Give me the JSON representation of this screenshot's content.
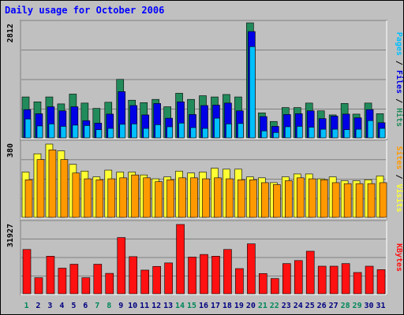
{
  "title": "Daily usage for October 2006",
  "colors": {
    "hits": "#228B5B",
    "files": "#0000e6",
    "pages": "#00bfff",
    "visits": "#ffff33",
    "sites": "#ff9900",
    "kbytes": "#ff1111",
    "weekend_day": "#00875a",
    "weekday": "#000080"
  },
  "chart_data": [
    {
      "type": "bar",
      "panel": "hits-files-pages",
      "y_max_label": "2812",
      "ylim": [
        0,
        2812
      ],
      "side_label": [
        "Pages",
        "Files",
        "Hits"
      ],
      "categories": [
        "1",
        "2",
        "3",
        "4",
        "5",
        "6",
        "7",
        "8",
        "9",
        "10",
        "11",
        "12",
        "13",
        "14",
        "15",
        "16",
        "17",
        "18",
        "19",
        "20",
        "21",
        "22",
        "23",
        "24",
        "25",
        "26",
        "27",
        "28",
        "29",
        "30",
        "31"
      ],
      "series": [
        {
          "name": "Hits",
          "values": [
            1000,
            880,
            1000,
            830,
            1070,
            850,
            720,
            870,
            1430,
            920,
            860,
            940,
            760,
            1090,
            940,
            1030,
            1000,
            1060,
            1000,
            2812,
            610,
            400,
            740,
            740,
            850,
            660,
            560,
            840,
            580,
            850,
            590
          ]
        },
        {
          "name": "Files",
          "values": [
            690,
            590,
            760,
            660,
            760,
            420,
            360,
            580,
            1130,
            790,
            560,
            840,
            480,
            880,
            570,
            790,
            800,
            850,
            660,
            2600,
            520,
            280,
            570,
            590,
            660,
            470,
            530,
            580,
            490,
            690,
            370
          ]
        },
        {
          "name": "Pages",
          "values": [
            460,
            290,
            340,
            280,
            310,
            300,
            200,
            230,
            330,
            340,
            230,
            320,
            270,
            360,
            250,
            230,
            480,
            340,
            350,
            2230,
            170,
            130,
            270,
            280,
            260,
            210,
            210,
            200,
            210,
            420,
            230
          ]
        }
      ]
    },
    {
      "type": "bar",
      "panel": "visits-sites",
      "y_max_label": "380",
      "ylim": [
        0,
        380
      ],
      "side_label": [
        "Sites",
        "Visits"
      ],
      "categories": [
        "1",
        "2",
        "3",
        "4",
        "5",
        "6",
        "7",
        "8",
        "9",
        "10",
        "11",
        "12",
        "13",
        "14",
        "15",
        "16",
        "17",
        "18",
        "19",
        "20",
        "21",
        "22",
        "23",
        "24",
        "25",
        "26",
        "27",
        "28",
        "29",
        "30",
        "31"
      ],
      "series": [
        {
          "name": "Visits",
          "values": [
            235,
            330,
            380,
            345,
            275,
            240,
            210,
            245,
            235,
            235,
            220,
            200,
            210,
            240,
            230,
            235,
            255,
            250,
            250,
            210,
            205,
            180,
            210,
            225,
            225,
            200,
            210,
            190,
            190,
            195,
            215
          ]
        },
        {
          "name": "Sites",
          "values": [
            195,
            300,
            350,
            300,
            230,
            200,
            195,
            200,
            205,
            220,
            205,
            185,
            195,
            205,
            205,
            200,
            205,
            200,
            195,
            195,
            180,
            170,
            190,
            205,
            200,
            195,
            180,
            175,
            175,
            175,
            180
          ]
        }
      ]
    },
    {
      "type": "bar",
      "panel": "kbytes",
      "y_max_label": "31927",
      "ylim": [
        0,
        31927
      ],
      "side_label": [
        "KBytes"
      ],
      "categories": [
        "1",
        "2",
        "3",
        "4",
        "5",
        "6",
        "7",
        "8",
        "9",
        "10",
        "11",
        "12",
        "13",
        "14",
        "15",
        "16",
        "17",
        "18",
        "19",
        "20",
        "21",
        "22",
        "23",
        "24",
        "25",
        "26",
        "27",
        "28",
        "29",
        "30",
        "31"
      ],
      "series": [
        {
          "name": "KBytes",
          "values": [
            20400,
            7400,
            17300,
            11800,
            13600,
            7400,
            13600,
            9400,
            25900,
            17100,
            10900,
            12600,
            14200,
            31927,
            16900,
            18100,
            17300,
            20400,
            11600,
            23000,
            9300,
            7000,
            13900,
            15300,
            19600,
            12700,
            12700,
            13900,
            9800,
            12700,
            11100
          ]
        }
      ]
    }
  ]
}
